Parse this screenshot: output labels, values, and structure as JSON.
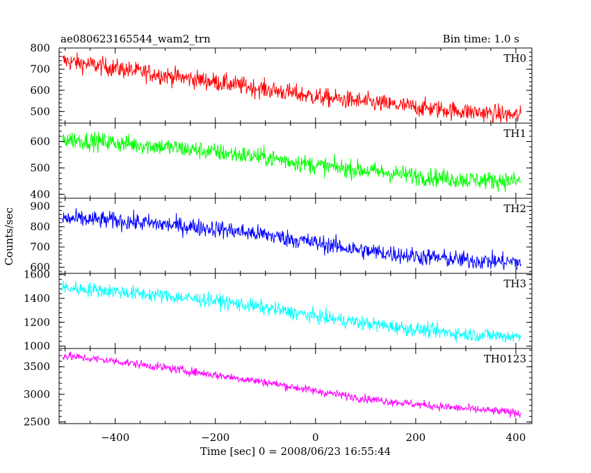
{
  "header": {
    "title": "ae080623165544_wam2_trn",
    "bin_time": "Bin time: 1.0 s"
  },
  "axes": {
    "xlabel": "Time [sec] 0 = 2008/06/23 16:55:44",
    "ylabel": "Counts/sec",
    "x_ticks": [
      "−400",
      "−200",
      "0",
      "200",
      "400"
    ]
  },
  "chart_data": {
    "type": "line",
    "title": "ae080623165544_wam2_trn",
    "xlabel": "Time [sec] 0 = 2008/06/23 16:55:44",
    "ylabel": "Counts/sec",
    "xlim": [
      -512,
      432
    ],
    "x_ticks": [
      -400,
      -200,
      0,
      200,
      400
    ],
    "bin_time_s": 1.0,
    "x_range_data": [
      -505,
      410
    ],
    "panels": [
      {
        "name": "TH0",
        "color": "#ff0000",
        "ylim": [
          445,
          800
        ],
        "y_ticks": [
          500,
          600,
          700,
          800
        ],
        "trend_x": [
          -505,
          -400,
          -300,
          -200,
          -100,
          0,
          100,
          200,
          300,
          410
        ],
        "trend_y": [
          740,
          705,
          670,
          640,
          605,
          570,
          545,
          520,
          500,
          480
        ],
        "noise_amp": 40
      },
      {
        "name": "TH1",
        "color": "#00ff00",
        "ylim": [
          385,
          670
        ],
        "y_ticks": [
          400,
          500,
          600
        ],
        "trend_x": [
          -505,
          -400,
          -300,
          -200,
          -100,
          0,
          100,
          200,
          300,
          410
        ],
        "trend_y": [
          610,
          595,
          580,
          560,
          540,
          510,
          490,
          470,
          455,
          450
        ],
        "noise_amp": 32
      },
      {
        "name": "TH2",
        "color": "#0000ff",
        "ylim": [
          570,
          940
        ],
        "y_ticks": [
          600,
          700,
          800,
          900
        ],
        "trend_x": [
          -505,
          -400,
          -300,
          -200,
          -100,
          0,
          100,
          200,
          300,
          410
        ],
        "trend_y": [
          840,
          830,
          810,
          790,
          760,
          720,
          680,
          655,
          635,
          625
        ],
        "noise_amp": 40
      },
      {
        "name": "TH3",
        "color": "#00ffff",
        "ylim": [
          980,
          1610
        ],
        "y_ticks": [
          1000,
          1200,
          1400,
          1600
        ],
        "trend_x": [
          -505,
          -400,
          -300,
          -200,
          -100,
          0,
          100,
          200,
          300,
          410
        ],
        "trend_y": [
          1490,
          1460,
          1420,
          1380,
          1320,
          1250,
          1190,
          1140,
          1100,
          1080
        ],
        "noise_amp": 55
      },
      {
        "name": "TH0123",
        "color": "#ff00ff",
        "ylim": [
          2470,
          3830
        ],
        "y_ticks": [
          2500,
          3000,
          3500
        ],
        "trend_x": [
          -505,
          -400,
          -300,
          -200,
          -100,
          0,
          100,
          200,
          300,
          410
        ],
        "trend_y": [
          3700,
          3600,
          3480,
          3350,
          3220,
          3060,
          2920,
          2820,
          2740,
          2660
        ],
        "noise_amp": 70
      }
    ]
  }
}
